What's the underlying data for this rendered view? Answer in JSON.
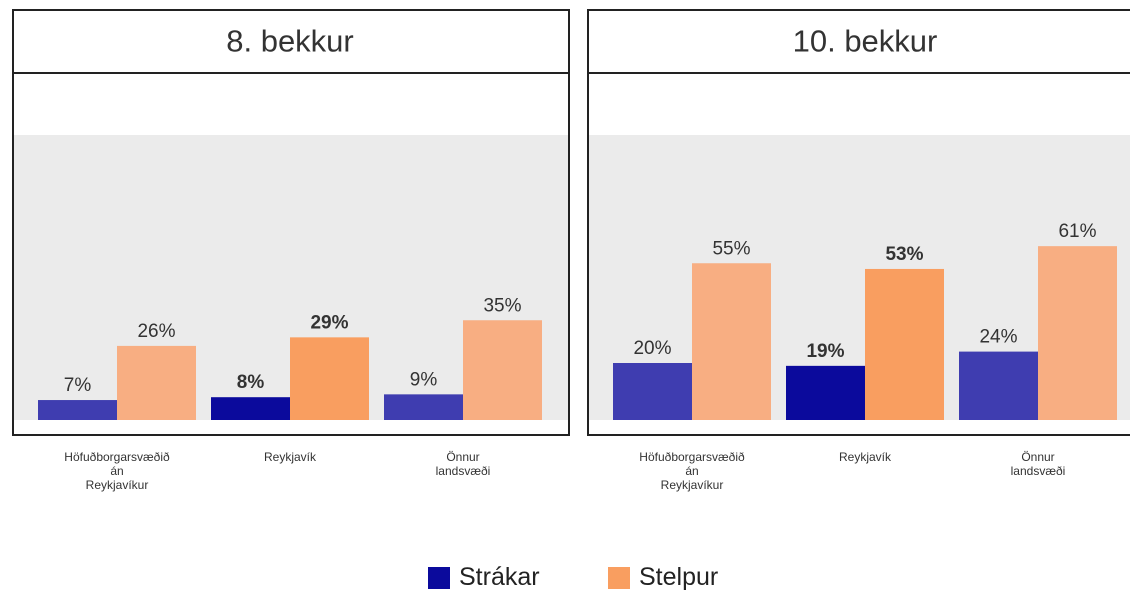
{
  "chart_data": [
    {
      "type": "bar",
      "title": "8. bekkur",
      "categories": [
        "Höfuðborgarsvæðið\nán\nReykjavíkur",
        "Reykjavík",
        "Önnur\nlandsvæði"
      ],
      "highlight": 1,
      "ylim": [
        0,
        100
      ],
      "series": [
        {
          "values": [
            7,
            8,
            9
          ],
          "value_labels": [
            "7%",
            "8%",
            "9%"
          ]
        },
        {
          "values": [
            26,
            29,
            35
          ],
          "value_labels": [
            "26%",
            "29%",
            "35%"
          ]
        }
      ]
    },
    {
      "type": "bar",
      "title": "10. bekkur",
      "categories": [
        "Höfuðborgarsvæðið\nán\nReykjavíkur",
        "Reykjavík",
        "Önnur\nlandsvæði"
      ],
      "highlight": 1,
      "ylim": [
        0,
        100
      ],
      "series": [
        {
          "values": [
            20,
            19,
            24
          ],
          "value_labels": [
            "20%",
            "19%",
            "24%"
          ]
        },
        {
          "values": [
            55,
            53,
            61
          ],
          "value_labels": [
            "55%",
            "53%",
            "61%"
          ]
        }
      ]
    }
  ],
  "legend": [
    {
      "name": "Strákar",
      "color": "#3f3db0",
      "highlight_color": "#0b0a9c"
    },
    {
      "name": "Stelpur",
      "color": "#f8ae82",
      "highlight_color": "#f99e60"
    }
  ]
}
